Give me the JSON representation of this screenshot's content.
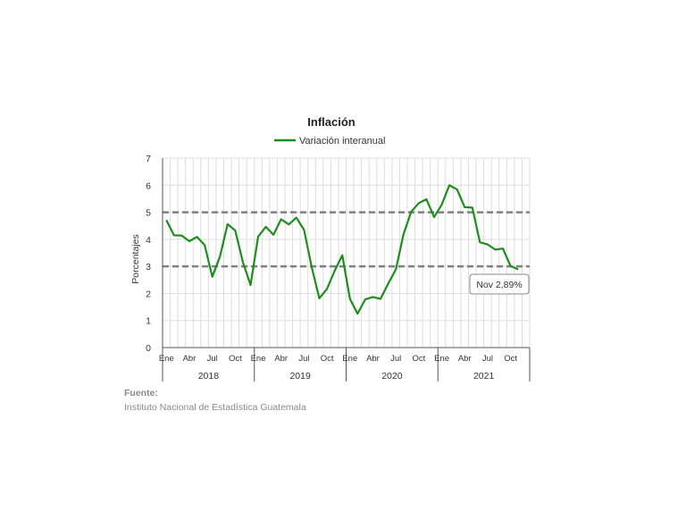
{
  "chart_data": {
    "type": "line",
    "title": "Inflación",
    "ylabel": "Porcentajes",
    "ylim": [
      0,
      7
    ],
    "yticks": [
      0,
      1,
      2,
      3,
      4,
      5,
      6,
      7
    ],
    "grid": true,
    "legend_position": "top-center",
    "month_labels": [
      "Ene",
      "Abr",
      "Jul",
      "Oct"
    ],
    "years": [
      "2018",
      "2019",
      "2020",
      "2021"
    ],
    "reference_lines": [
      3,
      5
    ],
    "series": [
      {
        "name": "Variación interanual",
        "color": "#1e8c1e",
        "values": [
          4.71,
          4.15,
          4.14,
          3.93,
          4.09,
          3.79,
          2.62,
          3.36,
          4.56,
          4.33,
          3.16,
          2.31,
          4.1,
          4.46,
          4.17,
          4.74,
          4.55,
          4.8,
          4.35,
          2.97,
          1.82,
          2.17,
          2.84,
          3.41,
          1.8,
          1.25,
          1.78,
          1.87,
          1.8,
          2.36,
          2.89,
          4.18,
          5.02,
          5.34,
          5.48,
          4.82,
          5.28,
          6.0,
          5.84,
          5.19,
          5.17,
          3.89,
          3.81,
          3.62,
          3.66,
          3.01,
          2.89
        ]
      }
    ],
    "annotation": "Nov 2,89%"
  },
  "source": {
    "label": "Fuente:",
    "text": "Instituto Nacional de Estadística Guatemala"
  },
  "colors": {
    "line": "#1e8c1e",
    "reference": "#808080",
    "grid": "#dddddd"
  }
}
